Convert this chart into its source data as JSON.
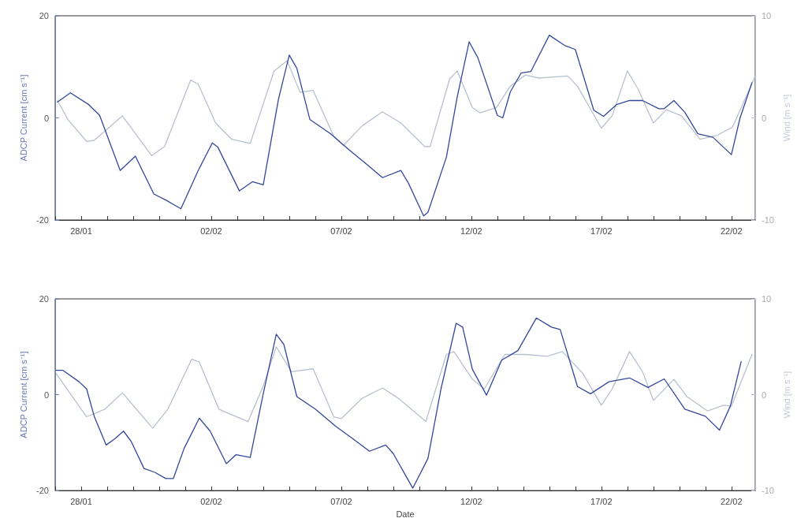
{
  "chart_data": [
    {
      "type": "line",
      "ylabel": "ADCP Current [cm s⁻¹]",
      "y2label": "Wind [m s⁻¹]",
      "marker": "none",
      "line_style": "solid",
      "xlim": [
        "--01-27",
        "--02-22T22:00"
      ],
      "xticks": [
        {
          "value": "--01-27",
          "label": null
        },
        {
          "value": "--01-28",
          "label": "28/01"
        },
        {
          "value": "--01-29",
          "label": null
        },
        {
          "value": "--01-30",
          "label": null
        },
        {
          "value": "--01-31",
          "label": null
        },
        {
          "value": "--02-01",
          "label": null
        },
        {
          "value": "--02-02",
          "label": "02/02"
        },
        {
          "value": "--02-03",
          "label": null
        },
        {
          "value": "--02-04",
          "label": null
        },
        {
          "value": "--02-05",
          "label": null
        },
        {
          "value": "--02-06",
          "label": null
        },
        {
          "value": "--02-07",
          "label": "07/02"
        },
        {
          "value": "--02-08",
          "label": null
        },
        {
          "value": "--02-09",
          "label": null
        },
        {
          "value": "--02-10",
          "label": null
        },
        {
          "value": "--02-11",
          "label": null
        },
        {
          "value": "--02-12",
          "label": "12/02"
        },
        {
          "value": "--02-13",
          "label": null
        },
        {
          "value": "--02-14",
          "label": null
        },
        {
          "value": "--02-15",
          "label": null
        },
        {
          "value": "--02-16",
          "label": null
        },
        {
          "value": "--02-17",
          "label": "17/02"
        },
        {
          "value": "--02-18",
          "label": null
        },
        {
          "value": "--02-19",
          "label": null
        },
        {
          "value": "--02-20",
          "label": null
        },
        {
          "value": "--02-21",
          "label": null
        },
        {
          "value": "--02-22",
          "label": "22/02"
        }
      ],
      "ylim": [
        -20,
        20
      ],
      "yticks": [
        -20,
        0,
        20
      ],
      "y2lim": [
        -10,
        10
      ],
      "y2ticks": [
        -10,
        0,
        10
      ],
      "series": [
        {
          "color": "#b9c1cf",
          "axis": "y2",
          "x": [
            "--01-27T02:00",
            "--01-27T12:00",
            "--01-28T05:00",
            "--01-28T12:00",
            "--01-29T14:00",
            "--01-30T17:00",
            "--01-31T05:00",
            "--02-01T05:00",
            "--02-01T12:00",
            "--02-02T04:00",
            "--02-02T19:00",
            "--02-03T12:00",
            "--02-04T10:00",
            "--02-04T22:00",
            "--02-05T10:00",
            "--02-05T22:00",
            "--02-06T17:00",
            "--02-07T02:00",
            "--02-07T19:00",
            "--02-08T14:00",
            "--02-09T07:00",
            "--02-10T05:00",
            "--02-10T10:00",
            "--02-11T04:00",
            "--02-11T11:00",
            "--02-12T01:00",
            "--02-12T08:00",
            "--02-12T23:00",
            "--02-13T12:00",
            "--02-14T02:00",
            "--02-14T14:00",
            "--02-15T17:00",
            "--02-16T02:00",
            "--02-17T00:00",
            "--02-17T10:00",
            "--02-18T00:00",
            "--02-18T10:00",
            "--02-19T00:00",
            "--02-19T12:00",
            "--02-20T02:00",
            "--02-20T19:00",
            "--02-21T11:00",
            "--02-22T01:00",
            "--02-22T22:00"
          ],
          "values": [
            1.7,
            -0.2,
            -2.3,
            -2.2,
            0.2,
            -3.7,
            -2.8,
            3.7,
            3.3,
            -0.5,
            -2.1,
            -2.5,
            4.6,
            5.6,
            2.5,
            2.7,
            -1.8,
            -2.7,
            -0.8,
            0.6,
            -0.5,
            -2.8,
            -2.8,
            3.8,
            4.6,
            1.0,
            0.5,
            1.0,
            3.1,
            4.2,
            3.9,
            4.1,
            3.1,
            -1.0,
            0.2,
            4.6,
            2.8,
            -0.5,
            0.8,
            0.2,
            -2.1,
            -1.7,
            -0.9,
            4.1
          ]
        },
        {
          "color": "#34479a",
          "x": [
            "--01-27T02:00",
            "--01-27T14:00",
            "--01-28T07:00",
            "--01-28T17:00",
            "--01-29T12:00",
            "--01-30T02:00",
            "--01-30T19:00",
            "--01-31T07:00",
            "--01-31T20:00",
            "--02-01T12:00",
            "--02-02T01:00",
            "--02-02T06:00",
            "--02-03T02:00",
            "--02-03T14:00",
            "--02-04T00:00",
            "--02-04T14:00",
            "--02-05T00:00",
            "--02-05T07:00",
            "--02-05T19:00",
            "--02-06T14:00",
            "--02-07T07:00",
            "--02-08T00:00",
            "--02-08T14:00",
            "--02-09T07:00",
            "--02-09T14:00",
            "--02-10T04:00",
            "--02-10T08:00",
            "--02-11T01:00",
            "--02-11T11:00",
            "--02-11T22:00",
            "--02-12T06:00",
            "--02-13T00:00",
            "--02-13T05:00",
            "--02-13T12:00",
            "--02-13T22:00",
            "--02-14T07:00",
            "--02-15T00:00",
            "--02-15T14:00",
            "--02-16T00:00",
            "--02-16T17:00",
            "--02-17T02:00",
            "--02-17T14:00",
            "--02-18T02:00",
            "--02-18T14:00",
            "--02-19T05:00",
            "--02-19T10:00",
            "--02-19T19:00",
            "--02-20T05:00",
            "--02-20T17:00",
            "--02-21T07:00",
            "--02-22T00:00",
            "--02-22T08:00",
            "--02-22T19:00"
          ],
          "values": [
            3.1,
            4.9,
            2.6,
            0.5,
            -10.3,
            -7.5,
            -14.9,
            -16.2,
            -17.8,
            -10.3,
            -4.9,
            -5.7,
            -14.3,
            -12.5,
            -13.1,
            3.6,
            12.3,
            9.7,
            -0.3,
            -3.1,
            -6.2,
            -9.2,
            -11.7,
            -10.3,
            -12.8,
            -19.2,
            -18.5,
            -7.7,
            4.1,
            14.9,
            11.8,
            0.5,
            0,
            5.1,
            8.8,
            9.1,
            16.2,
            14.2,
            13.4,
            1.5,
            0.3,
            2.6,
            3.4,
            3.4,
            1.8,
            1.8,
            3.4,
            1.1,
            -3.1,
            -3.8,
            -7.2,
            0,
            6.9
          ]
        }
      ]
    },
    {
      "type": "line",
      "xlabel": "Date",
      "ylabel": "ADCP Current [cm s⁻¹]",
      "y2label": "Wind [m s⁻¹]",
      "marker": "none",
      "line_style": "solid",
      "xlim": [
        "--01-27",
        "--02-22T22:00"
      ],
      "xticks": [
        {
          "value": "--01-27",
          "label": null
        },
        {
          "value": "--01-28",
          "label": "28/01"
        },
        {
          "value": "--01-29",
          "label": null
        },
        {
          "value": "--01-30",
          "label": null
        },
        {
          "value": "--01-31",
          "label": null
        },
        {
          "value": "--02-01",
          "label": null
        },
        {
          "value": "--02-02",
          "label": "02/02"
        },
        {
          "value": "--02-03",
          "label": null
        },
        {
          "value": "--02-04",
          "label": null
        },
        {
          "value": "--02-05",
          "label": null
        },
        {
          "value": "--02-06",
          "label": null
        },
        {
          "value": "--02-07",
          "label": "07/02"
        },
        {
          "value": "--02-08",
          "label": null
        },
        {
          "value": "--02-09",
          "label": null
        },
        {
          "value": "--02-10",
          "label": null
        },
        {
          "value": "--02-11",
          "label": null
        },
        {
          "value": "--02-12",
          "label": "12/02"
        },
        {
          "value": "--02-13",
          "label": null
        },
        {
          "value": "--02-14",
          "label": null
        },
        {
          "value": "--02-15",
          "label": null
        },
        {
          "value": "--02-16",
          "label": null
        },
        {
          "value": "--02-17",
          "label": "17/02"
        },
        {
          "value": "--02-18",
          "label": null
        },
        {
          "value": "--02-19",
          "label": null
        },
        {
          "value": "--02-20",
          "label": null
        },
        {
          "value": "--02-21",
          "label": null
        },
        {
          "value": "--02-22",
          "label": "22/02"
        }
      ],
      "ylim": [
        -20,
        20
      ],
      "yticks": [
        -20,
        0,
        20
      ],
      "y2lim": [
        -10,
        10
      ],
      "y2ticks": [
        -10,
        0,
        10
      ],
      "series": [
        {
          "color": "#b9c1cf",
          "axis": "y2",
          "x": [
            "--01-27T01:00",
            "--01-27T14:00",
            "--01-28T05:00",
            "--01-28T22:00",
            "--01-29T14:00",
            "--01-30T18:00",
            "--01-31T08:00",
            "--02-01T06:00",
            "--02-01T13:00",
            "--02-02T07:00",
            "--02-02T17:00",
            "--02-03T10:00",
            "--02-04T00:00",
            "--02-04T12:00",
            "--02-05T02:00",
            "--02-05T22:00",
            "--02-06T17:00",
            "--02-07T00:00",
            "--02-07T19:00",
            "--02-08T14:00",
            "--02-09T05:00",
            "--02-10T06:00",
            "--02-11T01:00",
            "--02-11T08:00",
            "--02-12T01:00",
            "--02-12T12:00",
            "--02-13T07:00",
            "--02-14T02:00",
            "--02-14T22:00",
            "--02-15T12:00",
            "--02-16T07:00",
            "--02-17T00:00",
            "--02-17T10:00",
            "--02-18T02:00",
            "--02-18T14:00",
            "--02-19T00:00",
            "--02-19T19:00",
            "--02-20T07:00",
            "--02-21T02:00",
            "--02-21T17:00",
            "--02-22T00:00",
            "--02-22T19:00"
          ],
          "values": [
            2.2,
            0.1,
            -2.3,
            -1.5,
            0.2,
            -3.5,
            -1.5,
            3.7,
            3.4,
            -1.5,
            -2.0,
            -2.8,
            0.9,
            5.0,
            2.4,
            2.7,
            -2.3,
            -2.5,
            -0.4,
            0.7,
            -0.4,
            -2.8,
            4.2,
            4.5,
            1.6,
            0.6,
            4.2,
            4.2,
            4.0,
            4.5,
            2.2,
            -1.1,
            0.6,
            4.5,
            2.4,
            -0.6,
            1.6,
            -0.2,
            -1.7,
            -1.1,
            -1.2,
            4.2
          ]
        },
        {
          "color": "#34479a",
          "x": [
            "--01-27T01:00",
            "--01-27T07:00",
            "--01-27T22:00",
            "--01-28T05:00",
            "--01-28T12:00",
            "--01-28T23:00",
            "--01-29T07:00",
            "--01-29T15:00",
            "--01-29T22:00",
            "--01-30T10:00",
            "--01-30T20:00",
            "--01-31T06:00",
            "--01-31T13:00",
            "--01-31T23:00",
            "--02-01T13:00",
            "--02-01T23:00",
            "--02-02T14:00",
            "--02-02T23:00",
            "--02-03T12:00",
            "--02-04T00:00",
            "--02-04T12:00",
            "--02-04T19:00",
            "--02-05T07:00",
            "--02-06T00:00",
            "--02-06T19:00",
            "--02-07T12:00",
            "--02-08T02:00",
            "--02-08T17:00",
            "--02-09T00:00",
            "--02-09T18:00",
            "--02-10T08:00",
            "--02-10T20:00",
            "--02-11T10:00",
            "--02-11T16:00",
            "--02-12T01:00",
            "--02-12T14:00",
            "--02-13T04:00",
            "--02-13T19:00",
            "--02-14T12:00",
            "--02-15T02:00",
            "--02-15T10:00",
            "--02-16T02:00",
            "--02-16T14:00",
            "--02-17T07:00",
            "--02-18T02:00",
            "--02-18T19:00",
            "--02-19T10:00",
            "--02-20T05:00",
            "--02-21T00:00",
            "--02-21T13:00",
            "--02-21T23:00",
            "--02-22T09:00"
          ],
          "values": [
            5.1,
            5.1,
            2.7,
            1.2,
            -4.5,
            -10.5,
            -9.2,
            -7.6,
            -9.7,
            -15.4,
            -16.2,
            -17.5,
            -17.5,
            -11.2,
            -4.9,
            -7.6,
            -14.4,
            -12.5,
            -13.1,
            0.2,
            12.6,
            10.5,
            -0.4,
            -3.0,
            -6.6,
            -9.4,
            -11.8,
            -10.5,
            -12.3,
            -19.5,
            -13.3,
            1.2,
            14.9,
            14.1,
            5.3,
            -0.1,
            7.2,
            9.2,
            16.0,
            14.1,
            13.6,
            1.7,
            0.2,
            2.7,
            3.5,
            1.5,
            3.3,
            -3.0,
            -4.5,
            -7.4,
            -2.4,
            6.9
          ]
        }
      ]
    }
  ]
}
